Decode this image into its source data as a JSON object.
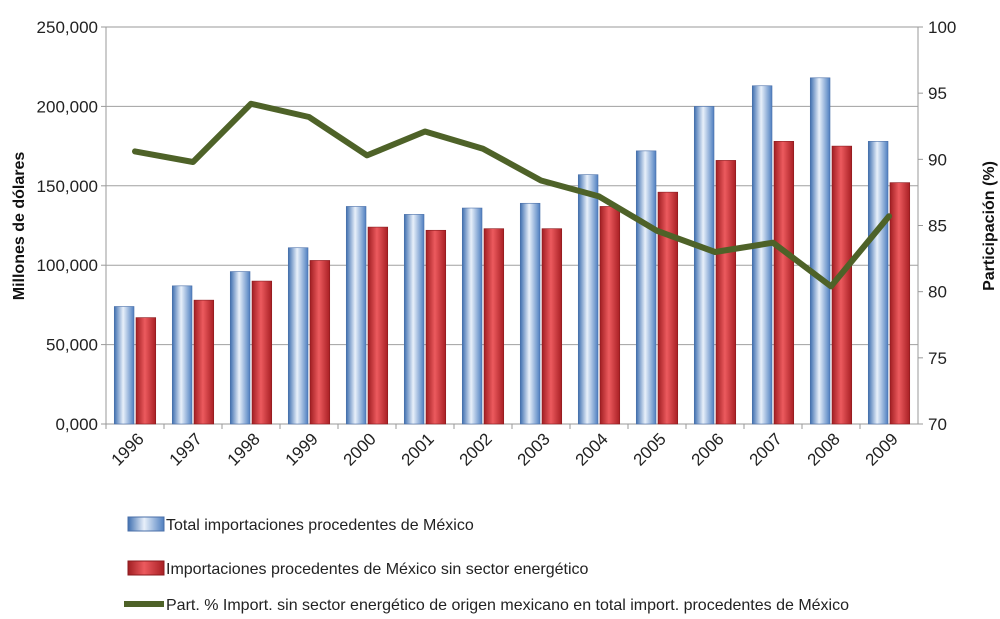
{
  "chart_data": {
    "type": "bar",
    "title": "",
    "categories": [
      "1996",
      "1997",
      "1998",
      "1999",
      "2000",
      "2001",
      "2002",
      "2003",
      "2004",
      "2005",
      "2006",
      "2007",
      "2008",
      "2009"
    ],
    "series": [
      {
        "name": "Total importaciones procedentes de México",
        "type": "bar",
        "axis": "left",
        "color": "#7aa3d6",
        "values": [
          74000,
          87000,
          96000,
          111000,
          137000,
          132000,
          136000,
          139000,
          157000,
          172000,
          200000,
          213000,
          218000,
          178000
        ]
      },
      {
        "name": "Importaciones procedentes de México sin sector energético",
        "type": "bar",
        "axis": "left",
        "color": "#c8282d",
        "values": [
          67000,
          78000,
          90000,
          103000,
          124000,
          122000,
          123000,
          123000,
          137000,
          146000,
          166000,
          178000,
          175000,
          152000
        ]
      },
      {
        "name": "Part. % Import. sin sector energético de origen mexicano en total import. procedentes de México",
        "type": "line",
        "axis": "right",
        "color": "#4e6228",
        "values": [
          90.6,
          89.8,
          94.2,
          93.2,
          90.3,
          92.1,
          90.8,
          88.4,
          87.2,
          84.6,
          83.0,
          83.7,
          80.4,
          85.7
        ]
      }
    ],
    "ylabel": "Millones de dólares",
    "ylabel_right": "Participación (%)",
    "ylim": [
      0,
      250000
    ],
    "ylim_right": [
      70,
      100
    ],
    "yticks": [
      "0,000",
      "50,000",
      "100,000",
      "150,000",
      "200,000",
      "250,000"
    ],
    "yticks_right": [
      "70",
      "75",
      "80",
      "85",
      "90",
      "95",
      "100"
    ],
    "grid": true,
    "legend_position": "bottom"
  }
}
